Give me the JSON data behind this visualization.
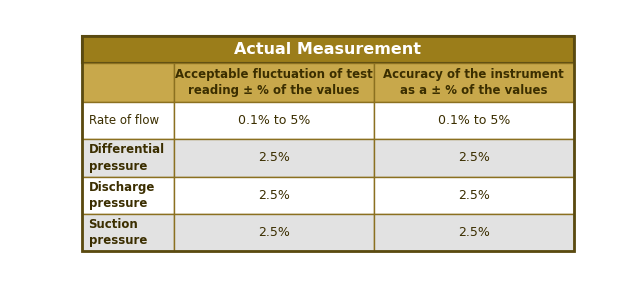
{
  "title": "Actual Measurement",
  "title_bg": "#9B7D1A",
  "title_color": "#FFFFFF",
  "header_bg": "#C8A84B",
  "header_color": "#3B2E00",
  "col1_header": "Acceptable fluctuation of test\nreading ± % of the values",
  "col2_header": "Accuracy of the instrument\nas a ± % of the values",
  "row_labels": [
    "Rate of flow",
    "Differential\npressure",
    "Discharge\npressure",
    "Suction\npressure"
  ],
  "col1_values": [
    "0.1% to 5%",
    "2.5%",
    "2.5%",
    "2.5%"
  ],
  "col2_values": [
    "0.1% to 5%",
    "2.5%",
    "2.5%",
    "2.5%"
  ],
  "row_bgs": [
    "#FFFFFF",
    "#E2E2E2",
    "#FFFFFF",
    "#E2E2E2"
  ],
  "row_label_color": "#3B2E00",
  "cell_value_color": "#3B2E00",
  "border_color": "#8B7020",
  "outer_border_color": "#5A4A10",
  "title_border_color": "#5A4A10"
}
